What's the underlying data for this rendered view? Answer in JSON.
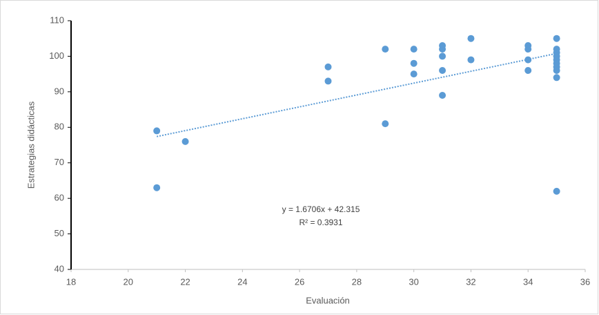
{
  "chart_data": {
    "type": "scatter",
    "x_label": "Evaluación",
    "y_label": "Estrategias didácticas",
    "x": [
      21,
      21,
      22,
      27,
      27,
      29,
      29,
      30,
      30,
      30,
      31,
      31,
      31,
      31,
      31,
      32,
      32,
      34,
      34,
      34,
      34,
      35,
      35,
      35,
      35,
      35,
      35,
      35,
      35,
      35,
      35
    ],
    "values": [
      79,
      63,
      76,
      97,
      93,
      102,
      81,
      102,
      98,
      95,
      103,
      102,
      100,
      96,
      89,
      105,
      99,
      103,
      102,
      99,
      96,
      105,
      102,
      101,
      100,
      99,
      98,
      97,
      96,
      94,
      62
    ],
    "color": "#5b9bd5",
    "xlim": [
      18,
      36
    ],
    "xticks": [
      18,
      20,
      22,
      24,
      26,
      28,
      30,
      32,
      34,
      36
    ],
    "ylim": [
      40,
      110
    ],
    "yticks": [
      40,
      50,
      60,
      70,
      80,
      90,
      100,
      110
    ],
    "trendline": {
      "slope": 1.6706,
      "intercept": 42.315,
      "equation": "y = 1.6706x + 42.315",
      "r_squared": "R² = 0.3931"
    }
  }
}
